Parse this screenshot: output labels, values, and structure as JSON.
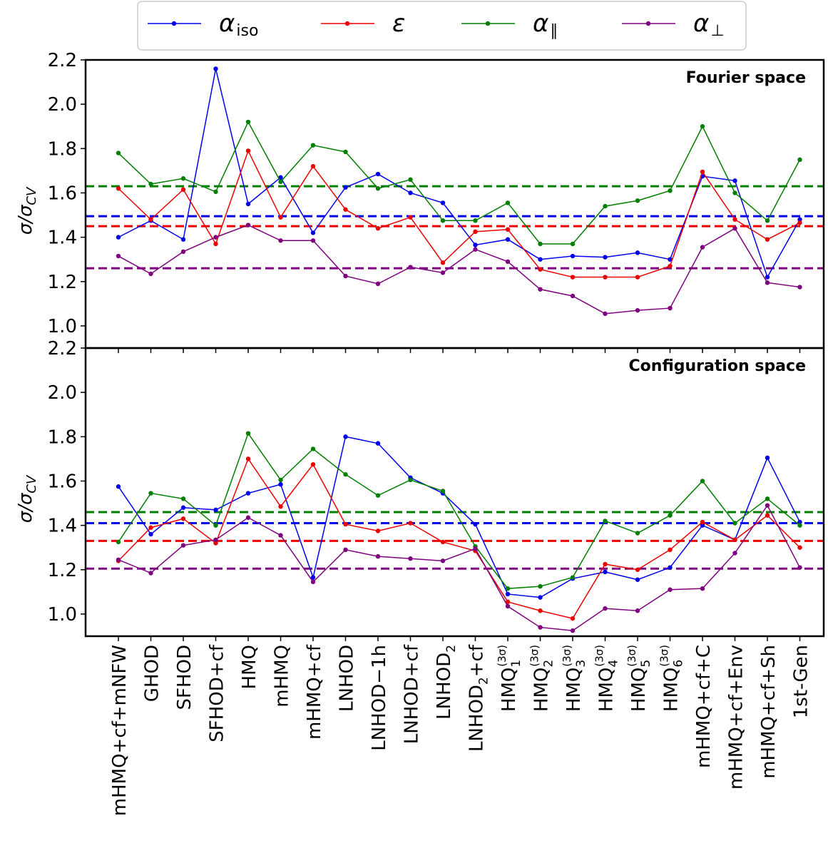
{
  "colors": {
    "alpha_iso": "#0000ee",
    "epsilon": "#ee0000",
    "alpha_par": "#007f00",
    "alpha_perp": "#7f007f"
  },
  "legend": {
    "placement": "top-center",
    "entries": [
      {
        "key": "alpha_iso",
        "symbol": "α",
        "sub": "iso"
      },
      {
        "key": "epsilon",
        "symbol": "ε",
        "sub": ""
      },
      {
        "key": "alpha_par",
        "symbol": "α",
        "sub": "∥"
      },
      {
        "key": "alpha_perp",
        "symbol": "α",
        "sub": "⊥"
      }
    ]
  },
  "y_axis_label": {
    "main": "σ/σ",
    "sub": "CV"
  },
  "categories": [
    {
      "main": "mHMQ+cf+mNFW"
    },
    {
      "main": "GHOD"
    },
    {
      "main": "SFHOD"
    },
    {
      "main": "SFHOD+cf"
    },
    {
      "main": "HMQ"
    },
    {
      "main": "mHMQ"
    },
    {
      "main": "mHMQ+cf"
    },
    {
      "main": "LNHOD"
    },
    {
      "main": "LNHOD−1h"
    },
    {
      "main": "LNHOD+cf"
    },
    {
      "main": "LNHOD",
      "sub": "2"
    },
    {
      "main": "LNHOD",
      "sub": "2",
      "tail": "+cf"
    },
    {
      "main": "HMQ",
      "sub": "1",
      "sup": "(3σ)"
    },
    {
      "main": "HMQ",
      "sub": "2",
      "sup": "(3σ)"
    },
    {
      "main": "HMQ",
      "sub": "3",
      "sup": "(3σ)"
    },
    {
      "main": "HMQ",
      "sub": "4",
      "sup": "(3σ)"
    },
    {
      "main": "HMQ",
      "sub": "5",
      "sup": "(3σ)"
    },
    {
      "main": "HMQ",
      "sub": "6",
      "sup": "(3σ)"
    },
    {
      "main": "mHMQ+cf+C"
    },
    {
      "main": "mHMQ+cf+Env"
    },
    {
      "main": "mHMQ+cf+Sh"
    },
    {
      "main": "1st-Gen"
    }
  ],
  "chart_data": [
    {
      "type": "line",
      "title": "Fourier space",
      "ylim": [
        0.9,
        2.2
      ],
      "yticks": [
        "1.0",
        "1.2",
        "1.4",
        "1.6",
        "1.8",
        "2.0",
        "2.2"
      ],
      "grid": false,
      "series": [
        {
          "key": "alpha_iso",
          "values": [
            1.4,
            1.475,
            1.39,
            2.16,
            1.55,
            1.67,
            1.42,
            1.625,
            1.685,
            1.6,
            1.555,
            1.365,
            1.39,
            1.3,
            1.315,
            1.31,
            1.33,
            1.3,
            1.675,
            1.655,
            1.22,
            1.48
          ],
          "mean": 1.495
        },
        {
          "key": "epsilon",
          "values": [
            1.62,
            1.48,
            1.615,
            1.37,
            1.79,
            1.49,
            1.72,
            1.525,
            1.44,
            1.49,
            1.285,
            1.425,
            1.435,
            1.255,
            1.22,
            1.22,
            1.22,
            1.27,
            1.695,
            1.48,
            1.39,
            1.465
          ],
          "mean": 1.45
        },
        {
          "key": "alpha_par",
          "values": [
            1.78,
            1.64,
            1.665,
            1.605,
            1.92,
            1.65,
            1.815,
            1.785,
            1.62,
            1.66,
            1.475,
            1.475,
            1.555,
            1.37,
            1.37,
            1.54,
            1.565,
            1.61,
            1.9,
            1.6,
            1.475,
            1.75
          ],
          "mean": 1.63
        },
        {
          "key": "alpha_perp",
          "values": [
            1.315,
            1.235,
            1.335,
            1.4,
            1.455,
            1.385,
            1.385,
            1.225,
            1.19,
            1.265,
            1.24,
            1.345,
            1.29,
            1.165,
            1.135,
            1.055,
            1.07,
            1.08,
            1.355,
            1.44,
            1.195,
            1.175
          ],
          "mean": 1.26
        }
      ]
    },
    {
      "type": "line",
      "title": "Configuration space",
      "ylim": [
        0.9,
        2.2
      ],
      "yticks": [
        "1.0",
        "1.2",
        "1.4",
        "1.6",
        "1.8",
        "2.0",
        "2.2"
      ],
      "grid": false,
      "series": [
        {
          "key": "alpha_iso",
          "values": [
            1.575,
            1.36,
            1.48,
            1.47,
            1.545,
            1.585,
            1.165,
            1.8,
            1.77,
            1.615,
            1.545,
            1.405,
            1.09,
            1.075,
            1.16,
            1.19,
            1.155,
            1.21,
            1.4,
            1.335,
            1.705,
            1.415
          ],
          "mean": 1.41
        },
        {
          "key": "epsilon",
          "values": [
            1.24,
            1.39,
            1.43,
            1.32,
            1.7,
            1.485,
            1.675,
            1.405,
            1.375,
            1.41,
            1.325,
            1.285,
            1.055,
            1.015,
            0.98,
            1.225,
            1.2,
            1.29,
            1.415,
            1.335,
            1.445,
            1.3
          ],
          "mean": 1.33
        },
        {
          "key": "alpha_par",
          "values": [
            1.325,
            1.545,
            1.52,
            1.4,
            1.815,
            1.605,
            1.745,
            1.63,
            1.535,
            1.605,
            1.555,
            1.305,
            1.115,
            1.125,
            1.165,
            1.42,
            1.365,
            1.445,
            1.6,
            1.41,
            1.52,
            1.4
          ],
          "mean": 1.46
        },
        {
          "key": "alpha_perp",
          "values": [
            1.245,
            1.185,
            1.31,
            1.335,
            1.435,
            1.355,
            1.145,
            1.29,
            1.26,
            1.25,
            1.24,
            1.295,
            1.035,
            0.94,
            0.925,
            1.025,
            1.015,
            1.11,
            1.115,
            1.275,
            1.49,
            1.21
          ],
          "mean": 1.205
        }
      ]
    }
  ]
}
